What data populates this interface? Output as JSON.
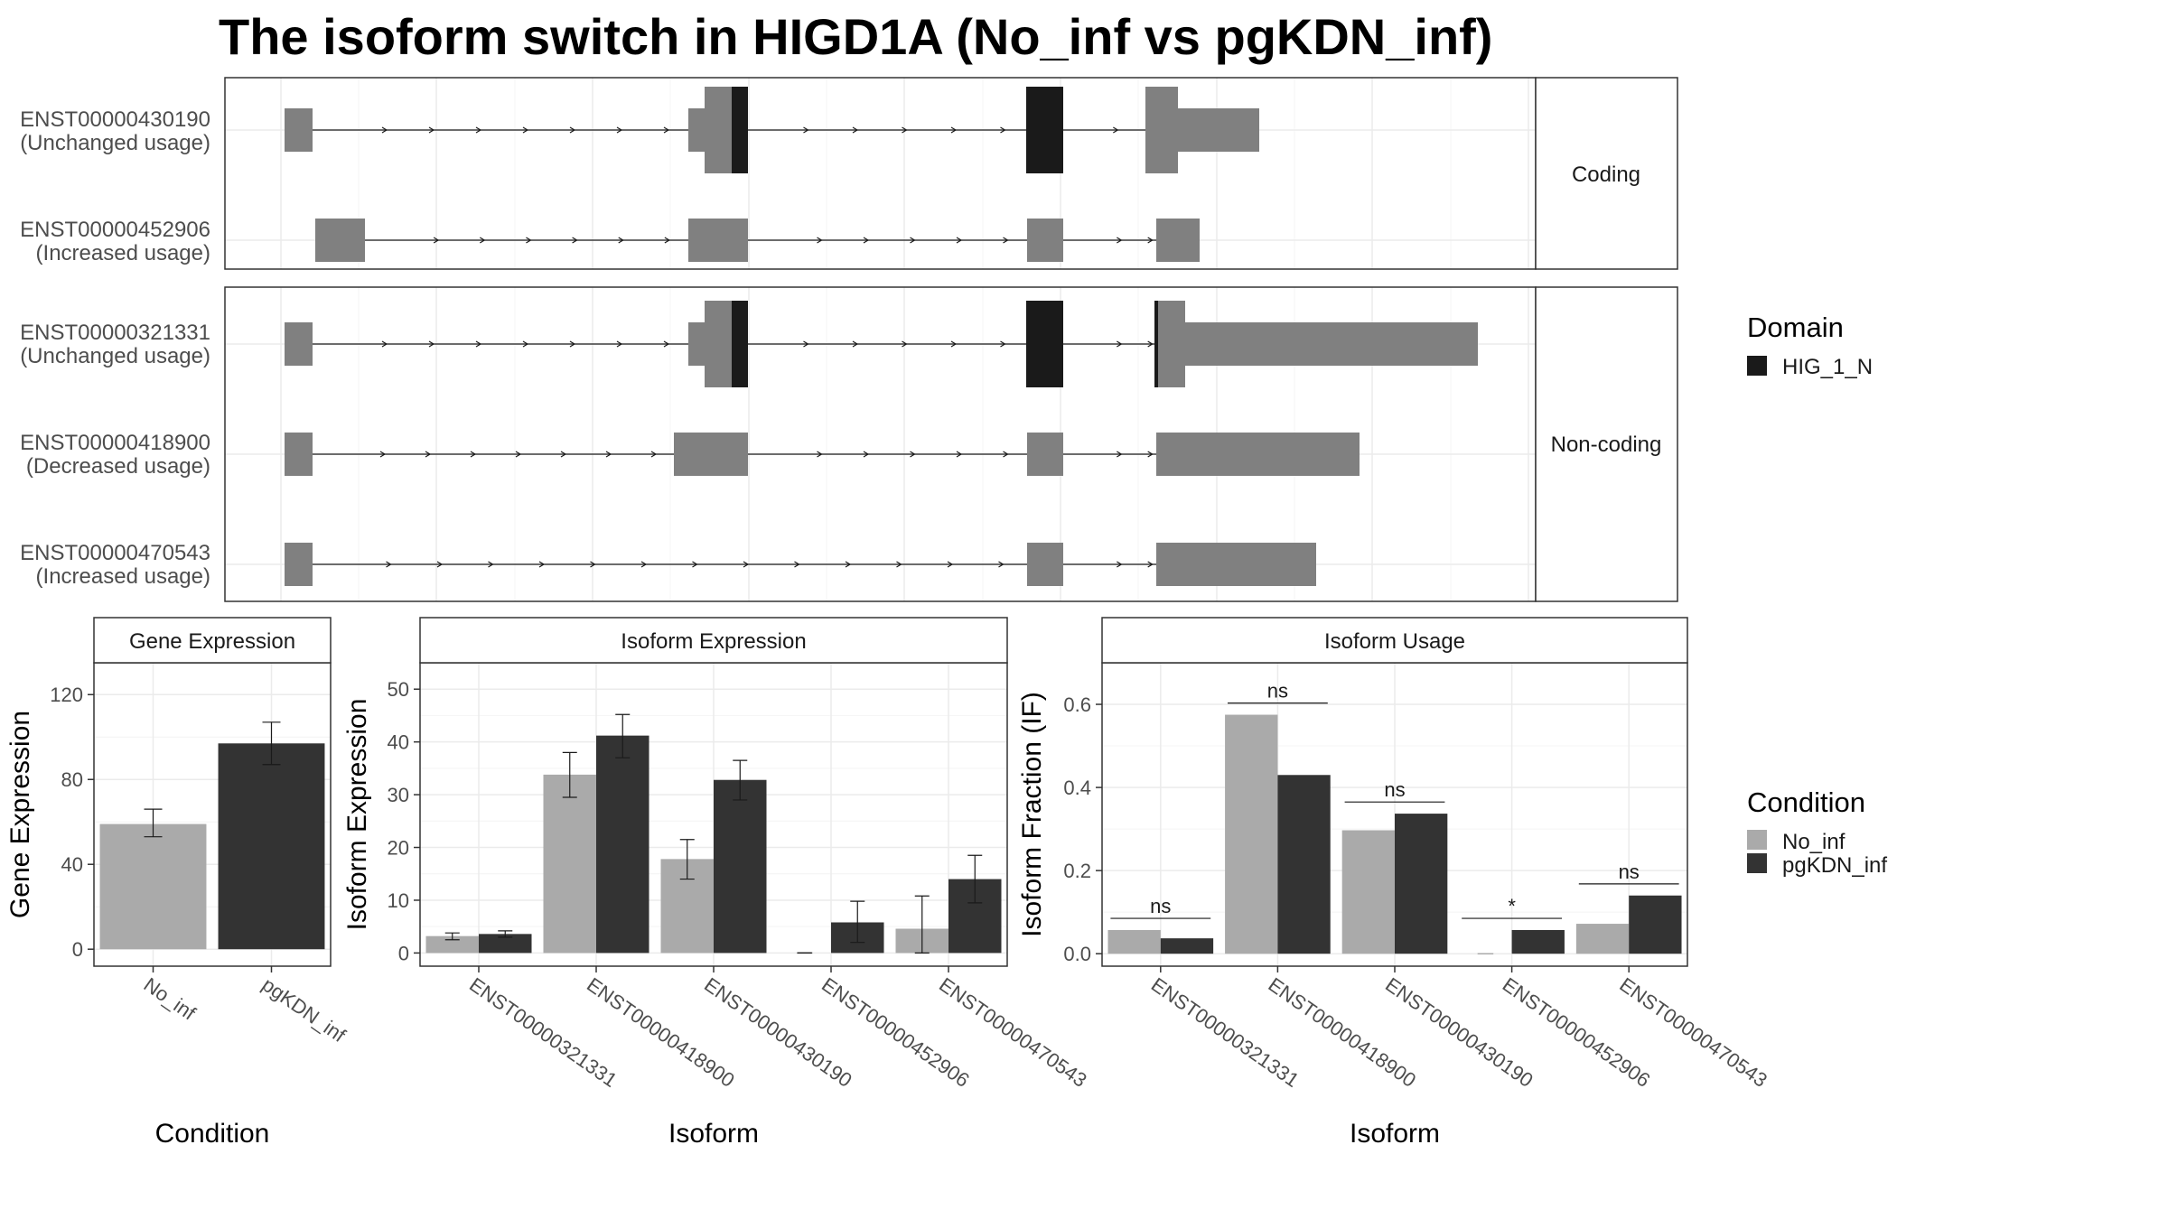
{
  "title": "The isoform switch in HIGD1A (No_inf vs pgKDN_inf)",
  "colors": {
    "exon": "#808080",
    "domain": "#1a1a1a",
    "no_inf": "#aaaaaa",
    "pgkdn_inf": "#333333",
    "panel_border": "#333333",
    "strip_bg": "#ffffff",
    "grid": "#ebebeb"
  },
  "transcript_panel": {
    "facets": [
      {
        "label": "Coding",
        "transcripts": [
          {
            "id": "ENST00000430190",
            "status": "(Unchanged usage)"
          },
          {
            "id": "ENST00000452906",
            "status": "(Increased usage)"
          }
        ]
      },
      {
        "label": "Non-coding",
        "transcripts": [
          {
            "id": "ENST00000321331",
            "status": "(Unchanged usage)"
          },
          {
            "id": "ENST00000418900",
            "status": "(Decreased usage)"
          },
          {
            "id": "ENST00000470543",
            "status": "(Increased usage)"
          }
        ]
      }
    ],
    "domain_legend": {
      "title": "Domain",
      "items": [
        "HIG_1_N"
      ]
    }
  },
  "condition_legend": {
    "title": "Condition",
    "items": [
      "No_inf",
      "pgKDN_inf"
    ]
  },
  "chart_data": [
    {
      "type": "bar",
      "panel": "Gene Expression",
      "categories": [
        "No_inf",
        "pgKDN_inf"
      ],
      "values": [
        59,
        97
      ],
      "errors": [
        [
          53,
          66
        ],
        [
          87,
          107
        ]
      ],
      "xlabel": "Condition",
      "ylabel": "Gene Expression",
      "ylim": [
        -8,
        135
      ],
      "yticks": [
        0,
        40,
        80,
        120
      ],
      "grid": true
    },
    {
      "type": "bar",
      "panel": "Isoform Expression",
      "categories": [
        "ENST00000321331",
        "ENST00000418900",
        "ENST00000430190",
        "ENST00000452906",
        "ENST00000470543"
      ],
      "series": [
        {
          "name": "No_inf",
          "values": [
            3.2,
            33.8,
            17.8,
            0,
            4.6
          ],
          "errors": [
            [
              2.5,
              3.8
            ],
            [
              29.5,
              38
            ],
            [
              14,
              21.5
            ],
            [
              0,
              0
            ],
            [
              0,
              10.8
            ]
          ]
        },
        {
          "name": "pgKDN_inf",
          "values": [
            3.6,
            41.2,
            32.8,
            5.8,
            14
          ],
          "errors": [
            [
              3,
              4.2
            ],
            [
              37,
              45.2
            ],
            [
              29,
              36.5
            ],
            [
              2,
              9.8
            ],
            [
              9.5,
              18.5
            ]
          ]
        }
      ],
      "xlabel": "Isoform",
      "ylabel": "Isoform Expression",
      "ylim": [
        -2.5,
        55
      ],
      "yticks": [
        0,
        10,
        20,
        30,
        40,
        50
      ],
      "grid": true
    },
    {
      "type": "bar",
      "panel": "Isoform Usage",
      "categories": [
        "ENST00000321331",
        "ENST00000418900",
        "ENST00000430190",
        "ENST00000452906",
        "ENST00000470543"
      ],
      "series": [
        {
          "name": "No_inf",
          "values": [
            0.057,
            0.575,
            0.297,
            0,
            0.072
          ]
        },
        {
          "name": "pgKDN_inf",
          "values": [
            0.037,
            0.43,
            0.337,
            0.057,
            0.14
          ]
        }
      ],
      "significance": [
        "ns",
        "ns",
        "ns",
        "*",
        "ns"
      ],
      "xlabel": "Isoform",
      "ylabel": "Isoform Fraction (IF)",
      "ylim": [
        -0.03,
        0.7
      ],
      "yticks": [
        "0.0",
        "0.2",
        "0.4",
        "0.6"
      ],
      "grid": true
    }
  ]
}
